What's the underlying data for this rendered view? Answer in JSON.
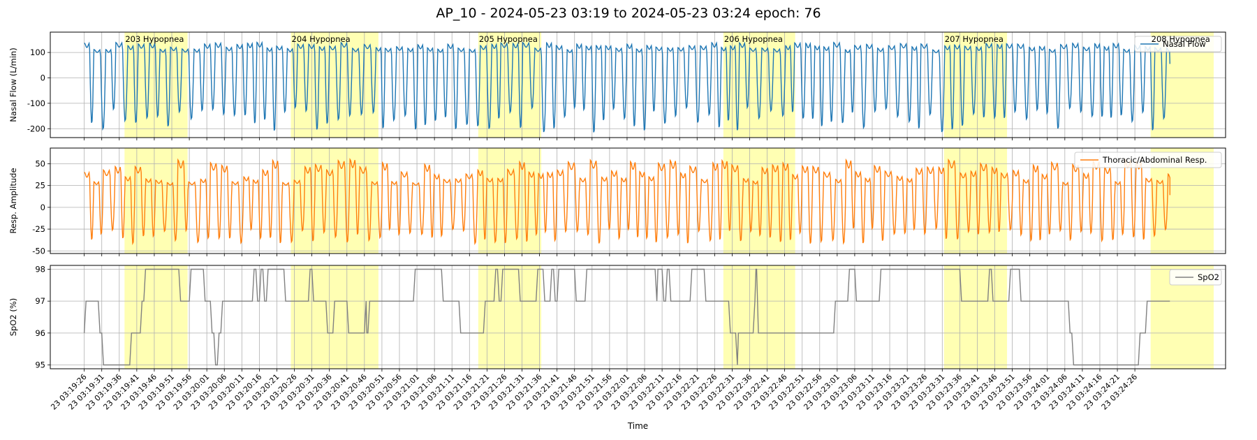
{
  "figure": {
    "title": "AP_10 - 2024-05-23 03:19 to 2024-05-23 03:24 epoch: 76",
    "xlabel": "Time"
  },
  "chart_data": [
    {
      "type": "line",
      "panel": "nasal-flow",
      "ylabel": "Nasal Flow (L/min)",
      "ylim": [
        -235,
        180
      ],
      "yticks": [
        100,
        0,
        -100,
        -200
      ],
      "grid": true,
      "legend_position": "top-right",
      "series": [
        {
          "name": "Nasal Flow",
          "color": "#1f77b4",
          "breath_period_s": 3.0,
          "amplitude_range": [
            -245,
            155
          ]
        }
      ]
    },
    {
      "type": "line",
      "panel": "resp-amplitude",
      "ylabel": "Resp. Amplitude",
      "ylim": [
        -53,
        68
      ],
      "yticks": [
        50,
        25,
        0,
        -25,
        -50
      ],
      "grid": true,
      "legend_position": "top-right",
      "series": [
        {
          "name": "Thoracic/Abdominal Resp.",
          "color": "#ff7f0e",
          "breath_period_s": 3.0,
          "amplitude_range": [
            -47,
            64
          ]
        }
      ]
    },
    {
      "type": "line",
      "panel": "spo2",
      "ylabel": "SpO2 (%)",
      "ylim": [
        94.88,
        98.12
      ],
      "yticks": [
        98,
        97,
        96,
        95
      ],
      "grid": true,
      "legend_position": "top-right",
      "series": [
        {
          "name": "SpO2",
          "color": "#808080",
          "points": [
            [
              0,
              96
            ],
            [
              0.5,
              97
            ],
            [
              4,
              97
            ],
            [
              4.5,
              96
            ],
            [
              5,
              96
            ],
            [
              5.5,
              95
            ],
            [
              13,
              95
            ],
            [
              13.5,
              96
            ],
            [
              16,
              96
            ],
            [
              16.5,
              97
            ],
            [
              17,
              97
            ],
            [
              17.5,
              98
            ],
            [
              27,
              98
            ],
            [
              27.5,
              97
            ],
            [
              30,
              97
            ],
            [
              30.5,
              98
            ],
            [
              34,
              98
            ],
            [
              34.5,
              97
            ],
            [
              36,
              97
            ],
            [
              36.5,
              96
            ],
            [
              37,
              96
            ],
            [
              37.5,
              95
            ],
            [
              38,
              95
            ],
            [
              38.5,
              96
            ],
            [
              39,
              96
            ],
            [
              39.5,
              97
            ],
            [
              48,
              97
            ],
            [
              48.5,
              98
            ],
            [
              49,
              98
            ],
            [
              49.5,
              97
            ],
            [
              50,
              97
            ],
            [
              50.5,
              98
            ],
            [
              51,
              98
            ],
            [
              51.5,
              97
            ],
            [
              52,
              97
            ],
            [
              52.5,
              98
            ],
            [
              57,
              98
            ],
            [
              57.5,
              97
            ],
            [
              64,
              97
            ],
            [
              64.5,
              98
            ],
            [
              65,
              98
            ],
            [
              65.5,
              97
            ],
            [
              69,
              97
            ],
            [
              69.5,
              96
            ],
            [
              71,
              96
            ],
            [
              71.5,
              97
            ],
            [
              75,
              97
            ],
            [
              75.5,
              96
            ],
            [
              80,
              96
            ],
            [
              80.5,
              97
            ],
            [
              80.7,
              96
            ],
            [
              81,
              96
            ],
            [
              81.5,
              97
            ],
            [
              94,
              97
            ],
            [
              94.5,
              98
            ],
            [
              102,
              98
            ],
            [
              102.5,
              97
            ],
            [
              107,
              97
            ],
            [
              107.5,
              96
            ],
            [
              114,
              96
            ],
            [
              114.5,
              97
            ],
            [
              117,
              97
            ],
            [
              117.5,
              98
            ],
            [
              118,
              98
            ],
            [
              118.5,
              97
            ],
            [
              119,
              97
            ],
            [
              119.5,
              98
            ],
            [
              124,
              98
            ],
            [
              124.5,
              97
            ],
            [
              129,
              97
            ],
            [
              129.5,
              98
            ],
            [
              131,
              98
            ],
            [
              131.5,
              97
            ],
            [
              133,
              97
            ],
            [
              133.5,
              98
            ],
            [
              134,
              98
            ],
            [
              134.5,
              97
            ],
            [
              135,
              97
            ],
            [
              135.5,
              98
            ],
            [
              140,
              98
            ],
            [
              140.5,
              97
            ],
            [
              143,
              97
            ],
            [
              143.5,
              98
            ],
            [
              163,
              98
            ],
            [
              163.5,
              97
            ],
            [
              163.8,
              98
            ],
            [
              165,
              98
            ],
            [
              165.5,
              97
            ],
            [
              166,
              97
            ],
            [
              166.5,
              98
            ],
            [
              167,
              98
            ],
            [
              167.5,
              97
            ],
            [
              173,
              97
            ],
            [
              173.5,
              98
            ],
            [
              177,
              98
            ],
            [
              177.5,
              97
            ],
            [
              184,
              97
            ],
            [
              184.5,
              96
            ],
            [
              186,
              96
            ],
            [
              186.5,
              95
            ],
            [
              186.8,
              96
            ],
            [
              191,
              96
            ],
            [
              191.5,
              97
            ],
            [
              191.8,
              98
            ],
            [
              192,
              98
            ],
            [
              192.5,
              96
            ],
            [
              214,
              96
            ],
            [
              214.5,
              97
            ],
            [
              218,
              97
            ],
            [
              218.5,
              98
            ],
            [
              220,
              98
            ],
            [
              220.5,
              97
            ],
            [
              227,
              97
            ],
            [
              227.5,
              98
            ],
            [
              250,
              98
            ],
            [
              250.5,
              97
            ],
            [
              258,
              97
            ],
            [
              258.5,
              98
            ],
            [
              259,
              98
            ],
            [
              259.5,
              97
            ],
            [
              264,
              97
            ],
            [
              264.5,
              98
            ],
            [
              267,
              98
            ],
            [
              267.5,
              97
            ],
            [
              281,
              97
            ],
            [
              281.5,
              96
            ],
            [
              282,
              96
            ],
            [
              282.5,
              95
            ],
            [
              301,
              95
            ],
            [
              301.5,
              96
            ],
            [
              303,
              96
            ],
            [
              303.5,
              97
            ],
            [
              310,
              97
            ]
          ]
        }
      ]
    }
  ],
  "x_axis": {
    "start_s": 0,
    "end_s": 310,
    "tick_labels": [
      "23 03:19:26",
      "23 03:19:31",
      "23 03:19:36",
      "23 03:19:41",
      "23 03:19:46",
      "23 03:19:51",
      "23 03:19:56",
      "23 03:20:01",
      "23 03:20:06",
      "23 03:20:11",
      "23 03:20:16",
      "23 03:20:21",
      "23 03:20:26",
      "23 03:20:31",
      "23 03:20:36",
      "23 03:20:41",
      "23 03:20:46",
      "23 03:20:51",
      "23 03:20:56",
      "23 03:21:01",
      "23 03:21:06",
      "23 03:21:11",
      "23 03:21:16",
      "23 03:21:21",
      "23 03:21:26",
      "23 03:21:31",
      "23 03:21:36",
      "23 03:21:41",
      "23 03:21:46",
      "23 03:21:51",
      "23 03:21:56",
      "23 03:22:01",
      "23 03:22:06",
      "23 03:22:11",
      "23 03:22:16",
      "23 03:22:21",
      "23 03:22:26",
      "23 03:22:31",
      "23 03:22:36",
      "23 03:22:41",
      "23 03:22:46",
      "23 03:22:51",
      "23 03:22:56",
      "23 03:23:01",
      "23 03:23:06",
      "23 03:23:11",
      "23 03:23:16",
      "23 03:23:21",
      "23 03:23:26",
      "23 03:23:31",
      "23 03:23:36",
      "23 03:23:41",
      "23 03:23:46",
      "23 03:23:51",
      "23 03:23:56",
      "23 03:24:01",
      "23 03:24:06",
      "23 03:24:11",
      "23 03:24:16",
      "23 03:24:21",
      "23 03:24:26"
    ]
  },
  "events": [
    {
      "label": "203 Hypopnea",
      "start_s": 11.5,
      "end_s": 29.5
    },
    {
      "label": "204 Hypopnea",
      "start_s": 59,
      "end_s": 84
    },
    {
      "label": "205 Hypopnea",
      "start_s": 112.5,
      "end_s": 130.5
    },
    {
      "label": "206 Hypopnea",
      "start_s": 182.5,
      "end_s": 203
    },
    {
      "label": "207 Hypopnea",
      "start_s": 245.5,
      "end_s": 263.5
    },
    {
      "label": "208 Hypopnea",
      "start_s": 304.5,
      "end_s": 322.5
    }
  ],
  "colors": {
    "event_fill": "#ffffb3",
    "grid": "#b0b0b0",
    "axes": "#000000"
  }
}
